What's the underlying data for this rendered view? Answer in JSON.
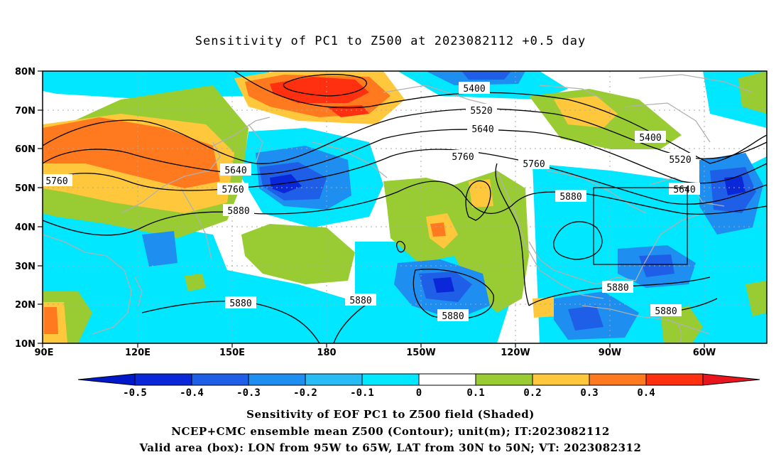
{
  "title": "Sensitivity of PC1 to Z500 at 2023082112 +0.5 day",
  "lon_ticks": [
    "90E",
    "120E",
    "150E",
    "180",
    "150W",
    "120W",
    "90W",
    "60W"
  ],
  "lat_ticks": [
    "80N",
    "70N",
    "60N",
    "50N",
    "40N",
    "30N",
    "20N",
    "10N"
  ],
  "contour_labels": [
    "5400",
    "5520",
    "5640",
    "5760",
    "5760",
    "5640",
    "5760",
    "5880",
    "5760",
    "5880",
    "5400",
    "5520",
    "5640",
    "5880",
    "5880",
    "5880",
    "5880",
    "5880"
  ],
  "colorbar": {
    "labels": [
      "-0.5",
      "-0.4",
      "-0.3",
      "-0.2",
      "-0.1",
      "0",
      "0.1",
      "0.2",
      "0.3",
      "0.4"
    ],
    "colors": [
      "#0a28d8",
      "#1f5fe8",
      "#1e8ff0",
      "#28bcf5",
      "#00e7ff",
      "#ffffff",
      "#99cc33",
      "#ffc83c",
      "#ff7a1e",
      "#ff3010"
    ],
    "arrow_low": "#0018c8",
    "arrow_high": "#e8141e"
  },
  "valid_box": {
    "lon": "95W to 65W",
    "lat": "30N to 50N"
  },
  "captions": [
    "Sensitivity of EOF PC1 to Z500 field (Shaded)",
    "NCEP+CMC ensemble mean Z500 (Contour); unit(m); IT:2023082112",
    "Valid area (box): LON from 95W to 65W, LAT from 30N to 50N; VT: 2023082312"
  ]
}
